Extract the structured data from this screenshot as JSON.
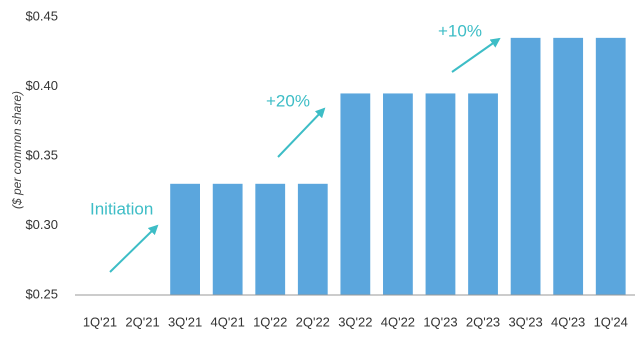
{
  "chart_data": {
    "type": "bar",
    "y_axis_label": "($ per common share)",
    "categories": [
      "1Q'21",
      "2Q'21",
      "3Q'21",
      "4Q'21",
      "1Q'22",
      "2Q'22",
      "3Q'22",
      "4Q'22",
      "1Q'23",
      "2Q'23",
      "3Q'23",
      "4Q'23",
      "1Q'24"
    ],
    "values": [
      null,
      null,
      0.33,
      0.33,
      0.33,
      0.33,
      0.395,
      0.395,
      0.395,
      0.395,
      0.435,
      0.435,
      0.435
    ],
    "color": "#5ba6dd",
    "ylim": [
      0.25,
      0.45
    ],
    "yticks": [
      {
        "value": 0.25,
        "label": "$0.25"
      },
      {
        "value": 0.3,
        "label": "$0.30"
      },
      {
        "value": 0.35,
        "label": "$0.35"
      },
      {
        "value": 0.4,
        "label": "$0.40"
      },
      {
        "value": 0.45,
        "label": "$0.45"
      }
    ],
    "annotations": [
      "Initiation",
      "+20%",
      "+10%"
    ],
    "grid": false
  }
}
